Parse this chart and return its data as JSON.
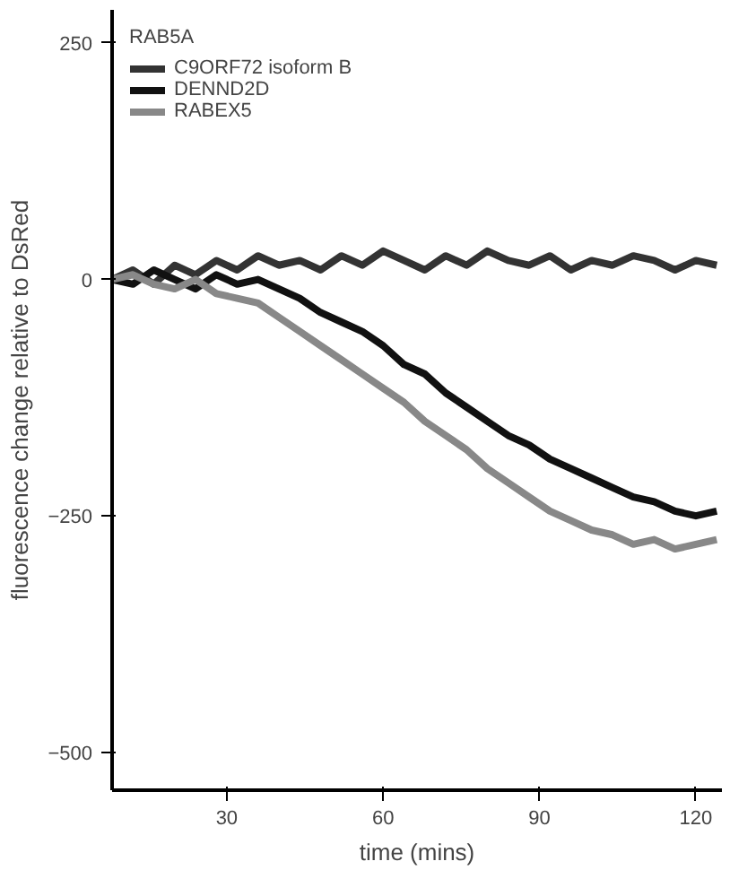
{
  "chart_data": {
    "type": "line",
    "xlabel": "time (mins)",
    "ylabel": "fluorescence change relative to DsRed",
    "legend_title": "RAB5A",
    "x": [
      8,
      12,
      16,
      20,
      24,
      28,
      32,
      36,
      40,
      44,
      48,
      52,
      56,
      60,
      64,
      68,
      72,
      76,
      80,
      84,
      88,
      92,
      96,
      100,
      104,
      108,
      112,
      116,
      120,
      124
    ],
    "series": [
      {
        "name": "C9ORF72 isoform B",
        "color": "#333333",
        "values": [
          0,
          10,
          -5,
          15,
          5,
          20,
          10,
          25,
          15,
          20,
          10,
          25,
          15,
          30,
          20,
          10,
          25,
          15,
          30,
          20,
          15,
          25,
          10,
          20,
          15,
          25,
          20,
          10,
          20,
          15
        ]
      },
      {
        "name": "DENND2D",
        "color": "#111111",
        "values": [
          0,
          -5,
          10,
          0,
          -10,
          5,
          -5,
          0,
          -10,
          -20,
          -35,
          -45,
          -55,
          -70,
          -90,
          -100,
          -120,
          -135,
          -150,
          -165,
          -175,
          -190,
          -200,
          -210,
          -220,
          -230,
          -235,
          -245,
          -250,
          -245
        ]
      },
      {
        "name": "RABEX5",
        "color": "#888888",
        "values": [
          0,
          5,
          -5,
          -10,
          0,
          -15,
          -20,
          -25,
          -40,
          -55,
          -70,
          -85,
          -100,
          -115,
          -130,
          -150,
          -165,
          -180,
          -200,
          -215,
          -230,
          -245,
          -255,
          -265,
          -270,
          -280,
          -275,
          -285,
          -280,
          -275
        ]
      }
    ],
    "xlim": [
      8,
      125
    ],
    "xticks": [
      30,
      60,
      90,
      120
    ],
    "ylim": [
      -540,
      285
    ],
    "yticks": [
      250,
      0,
      -250,
      -500
    ],
    "grid": false,
    "legend": "top left"
  }
}
